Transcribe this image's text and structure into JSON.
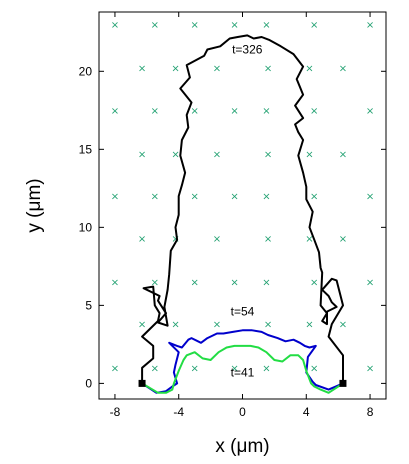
{
  "chart_data": {
    "type": "line",
    "xlabel": "x (μm)",
    "ylabel": "y (μm)",
    "xlim": [
      -9,
      9
    ],
    "ylim": [
      -1,
      23.8
    ],
    "x_ticks": [
      "-8",
      "-4",
      "0",
      "4",
      "8"
    ],
    "y_ticks": [
      "0",
      "5",
      "10",
      "15",
      "20"
    ],
    "grid": false,
    "marker_colors": {
      "lattice": "#20a070",
      "endpoints": "#000000"
    },
    "lattice_points": {
      "marker": "x",
      "rows": [
        {
          "y": 23,
          "x": [
            -8,
            -5.5,
            -3,
            -0.5,
            1.5,
            4.5,
            8
          ]
        },
        {
          "y": 20.2,
          "x": [
            -6.3,
            -4.2,
            -1.6,
            1.6,
            4.2,
            6.3
          ]
        },
        {
          "y": 17.5,
          "x": [
            -8,
            -5.5,
            -3,
            -0.5,
            1.5,
            4.5,
            8
          ]
        },
        {
          "y": 14.7,
          "x": [
            -6.3,
            -4.2,
            -1.6,
            1.6,
            4.2,
            6.3
          ]
        },
        {
          "y": 12,
          "x": [
            -8,
            -5.5,
            -3,
            -0.5,
            1.5,
            4.5,
            8
          ]
        },
        {
          "y": 9.3,
          "x": [
            -6.3,
            -4.2,
            -1.6,
            1.6,
            4.2,
            6.3
          ]
        },
        {
          "y": 6.5,
          "x": [
            -8,
            -5.5,
            -3,
            -0.5,
            1.5,
            4.5,
            8
          ]
        },
        {
          "y": 3.8,
          "x": [
            -6.3,
            -4.2,
            -1.6,
            1.6,
            4.2,
            6.3
          ]
        },
        {
          "y": 1,
          "x": [
            -8,
            -5.5,
            -3,
            -0.5,
            1.5,
            4.5,
            8
          ]
        }
      ]
    },
    "endpoints": [
      [
        -6.3,
        0
      ],
      [
        6.3,
        0
      ]
    ],
    "series": [
      {
        "name": "t=326",
        "color": "#000000",
        "label_at": [
          0.3,
          21.4
        ],
        "x": [
          -6.3,
          -6.3,
          -5.6,
          -5.6,
          -6.3,
          -5.3,
          -5.2,
          -5.5,
          -5.6,
          -6.2,
          -5.2,
          -5.3,
          -4.8,
          -5.3,
          -4.7,
          -4.9,
          -4.7,
          -4.6,
          -4.5,
          -4.1,
          -4.2,
          -4.0,
          -4.0,
          -3.8,
          -3.6,
          -3.9,
          -3.8,
          -3.4,
          -3.5,
          -3.2,
          -3.9,
          -3.3,
          -3.5,
          -2.4,
          -2.2,
          -1.4,
          -0.8,
          -0.3,
          0.3,
          0.7,
          1.2,
          1.7,
          2.4,
          3.2,
          3.8,
          3.4,
          3.6,
          3.8,
          3.3,
          3.8,
          3.3,
          3.5,
          3.8,
          3.5,
          3.8,
          4.0,
          4.0,
          4.4,
          4.2,
          4.5,
          4.8,
          4.9,
          5.0,
          4.9,
          5.3,
          5.0,
          5.3,
          5.3,
          5.9,
          5.6,
          5.4,
          5.0,
          5.6,
          5.9,
          6.3,
          5.6,
          5.4,
          6.3,
          6.3
        ],
        "y": [
          0,
          1.0,
          1.6,
          2.4,
          3.0,
          4.0,
          4.5,
          5.0,
          6.2,
          6.1,
          5.6,
          5.3,
          4.5,
          3.9,
          3.7,
          4.9,
          6.0,
          7.0,
          8.5,
          9.2,
          10.0,
          10.8,
          12.0,
          12.7,
          13.5,
          14.6,
          15.6,
          16.4,
          17.2,
          18.0,
          18.9,
          19.6,
          20.4,
          21.0,
          21.4,
          21.6,
          22.1,
          22.2,
          22.3,
          22.1,
          22.2,
          22.0,
          21.6,
          21.1,
          20.3,
          19.5,
          19.0,
          18.5,
          17.8,
          17.0,
          16.6,
          16.1,
          15.6,
          14.6,
          13.5,
          12.6,
          11.8,
          11.0,
          10.0,
          9.2,
          8.4,
          7.4,
          7.1,
          5.0,
          4.5,
          4.0,
          3.8,
          4.6,
          4.9,
          5.2,
          5.6,
          6.0,
          6.7,
          6.6,
          5.0,
          3.8,
          3.0,
          1.8,
          0
        ]
      },
      {
        "name": "t=54",
        "color": "#0000cc",
        "label_at": [
          0.0,
          4.6
        ],
        "x": [
          -6.3,
          -5.4,
          -4.8,
          -4.4,
          -4.1,
          -4.3,
          -4.2,
          -4.0,
          -4.6,
          -4.1,
          -3.8,
          -3.4,
          -3.2,
          -2.6,
          -2.2,
          -1.6,
          -1.2,
          -0.6,
          0.0,
          0.6,
          1.2,
          1.6,
          2.2,
          2.7,
          3.2,
          3.6,
          3.9,
          4.2,
          4.6,
          4.1,
          4.0,
          4.4,
          4.6,
          5.4,
          6.3
        ],
        "y": [
          0,
          -0.6,
          -0.5,
          -0.2,
          0.0,
          0.7,
          1.2,
          2.0,
          2.6,
          2.4,
          2.3,
          2.8,
          2.9,
          2.6,
          2.9,
          3.2,
          3.2,
          3.3,
          3.4,
          3.4,
          3.3,
          3.1,
          2.9,
          2.7,
          2.8,
          2.6,
          2.4,
          2.3,
          2.4,
          1.7,
          0.7,
          0.1,
          -0.1,
          -0.4,
          0
        ]
      },
      {
        "name": "t=41",
        "color": "#22dd44",
        "label_at": [
          0.0,
          0.7
        ],
        "x": [
          -6.3,
          -5.3,
          -4.8,
          -4.4,
          -4.3,
          -4.0,
          -3.7,
          -3.5,
          -3.0,
          -2.5,
          -2.0,
          -1.5,
          -1.0,
          -0.5,
          0.0,
          0.5,
          1.0,
          1.5,
          2.0,
          2.5,
          3.0,
          3.5,
          3.8,
          4.0,
          4.3,
          4.5,
          4.9,
          5.4,
          6.3
        ],
        "y": [
          0,
          -0.6,
          -0.6,
          -0.4,
          0.0,
          0.8,
          1.5,
          1.8,
          2.0,
          1.6,
          1.5,
          2.0,
          2.3,
          2.4,
          2.4,
          2.4,
          2.3,
          2.0,
          1.5,
          1.4,
          1.8,
          1.8,
          1.5,
          0.8,
          0.0,
          -0.2,
          -0.4,
          -0.6,
          0
        ]
      }
    ]
  }
}
